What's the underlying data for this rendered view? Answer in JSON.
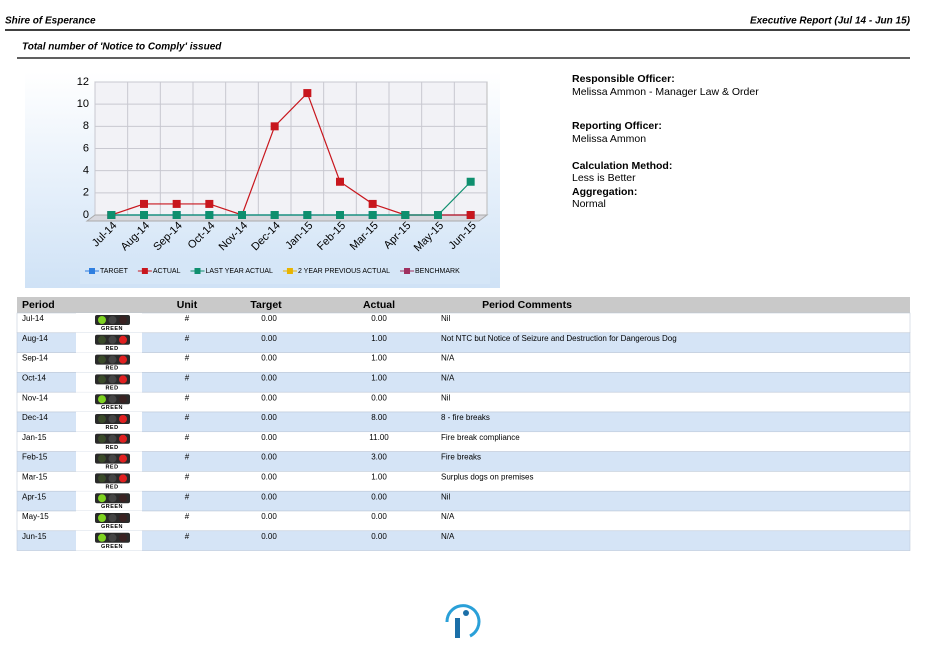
{
  "header": {
    "left": "Shire of Esperance",
    "right": "Executive Report (Jul 14 - Jun 15)",
    "subtitle": "Total number of 'Notice to Comply' issued"
  },
  "chart_data": {
    "type": "line",
    "categories": [
      "Jul-14",
      "Aug-14",
      "Sep-14",
      "Oct-14",
      "Nov-14",
      "Dec-14",
      "Jan-15",
      "Feb-15",
      "Mar-15",
      "Apr-15",
      "May-15",
      "Jun-15"
    ],
    "ylim": [
      0,
      12
    ],
    "yticks": [
      0,
      2,
      4,
      6,
      8,
      10,
      12
    ],
    "grid": true,
    "legend": "bottom",
    "series": [
      {
        "name": "TARGET",
        "color": "#2f7fe0",
        "values": [
          0,
          0,
          0,
          0,
          0,
          0,
          0,
          0,
          0,
          0,
          0,
          0
        ]
      },
      {
        "name": "ACTUAL",
        "color": "#c8161d",
        "values": [
          0,
          1,
          1,
          1,
          0,
          8,
          11,
          3,
          1,
          0,
          0,
          0
        ]
      },
      {
        "name": "LAST YEAR ACTUAL",
        "color": "#0e8f6e",
        "values": [
          0,
          0,
          0,
          0,
          0,
          0,
          0,
          0,
          0,
          0,
          0,
          3
        ]
      },
      {
        "name": "2 YEAR PREVIOUS ACTUAL",
        "color": "#e8b400",
        "values": [
          null,
          null,
          null,
          null,
          null,
          null,
          null,
          null,
          null,
          null,
          null,
          null
        ]
      },
      {
        "name": "BENCHMARK",
        "color": "#a0305f",
        "values": [
          null,
          null,
          null,
          null,
          null,
          null,
          null,
          null,
          null,
          null,
          null,
          null
        ]
      }
    ]
  },
  "info": [
    {
      "label": "Responsible Officer:",
      "value": "Melissa Ammon - Manager Law & Order"
    },
    {
      "label": "Reporting Officer:",
      "value": "Melissa Ammon"
    },
    {
      "label": "Calculation Method:",
      "value": "Less is Better"
    },
    {
      "label": "Aggregation:",
      "value": "Normal"
    }
  ],
  "table": {
    "columns": [
      "Period",
      "Unit",
      "Target",
      "Actual",
      "Period Comments"
    ],
    "rows": [
      [
        "Jul-14",
        "GREEN",
        "#",
        "0.00",
        "0.00",
        "Nil"
      ],
      [
        "Aug-14",
        "RED",
        "#",
        "0.00",
        "1.00",
        "Not NTC but Notice of Seizure and Destruction for Dangerous Dog"
      ],
      [
        "Sep-14",
        "RED",
        "#",
        "0.00",
        "1.00",
        "N/A"
      ],
      [
        "Oct-14",
        "RED",
        "#",
        "0.00",
        "1.00",
        "N/A"
      ],
      [
        "Nov-14",
        "GREEN",
        "#",
        "0.00",
        "0.00",
        "Nil"
      ],
      [
        "Dec-14",
        "RED",
        "#",
        "0.00",
        "8.00",
        "8 - fire breaks"
      ],
      [
        "Jan-15",
        "RED",
        "#",
        "0.00",
        "11.00",
        "Fire break compliance"
      ],
      [
        "Feb-15",
        "RED",
        "#",
        "0.00",
        "3.00",
        "Fire breaks"
      ],
      [
        "Mar-15",
        "RED",
        "#",
        "0.00",
        "1.00",
        "Surplus dogs on premises"
      ],
      [
        "Apr-15",
        "GREEN",
        "#",
        "0.00",
        "0.00",
        "Nil"
      ],
      [
        "May-15",
        "GREEN",
        "#",
        "0.00",
        "0.00",
        "N/A"
      ],
      [
        "Jun-15",
        "GREEN",
        "#",
        "0.00",
        "0.00",
        "N/A"
      ]
    ]
  }
}
